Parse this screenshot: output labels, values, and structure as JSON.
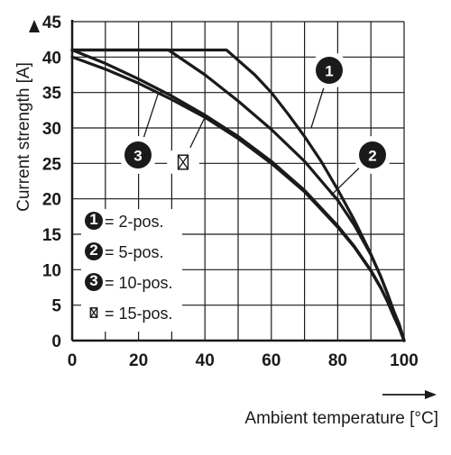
{
  "chart_data": {
    "type": "line",
    "xlabel": "Ambient temperature [°C]",
    "ylabel": "Current strength [A]",
    "xlim": [
      0,
      100
    ],
    "ylim": [
      0,
      45
    ],
    "x_ticks": [
      0,
      20,
      40,
      60,
      80,
      100
    ],
    "y_ticks": [
      0,
      5,
      10,
      15,
      20,
      25,
      30,
      35,
      40,
      45
    ],
    "grid": true,
    "series": [
      {
        "name": "2-pos.",
        "marker": "1",
        "x": [
          0,
          20,
          46.5,
          55,
          60,
          65,
          70,
          75,
          80,
          85,
          90,
          93,
          95,
          97,
          98.5,
          100
        ],
        "y": [
          41,
          41,
          41,
          37.5,
          35,
          32,
          28.8,
          25.3,
          21.3,
          17,
          12.2,
          9,
          6.6,
          4,
          2.3,
          0
        ]
      },
      {
        "name": "5-pos.",
        "marker": "2",
        "x": [
          0,
          20,
          29,
          40,
          50,
          60,
          70,
          80,
          85,
          90,
          93,
          95,
          97,
          98.5,
          100
        ],
        "y": [
          41,
          41,
          41,
          37.5,
          33.8,
          29.8,
          25.3,
          19.8,
          16.3,
          12.1,
          9,
          6.6,
          4,
          2.3,
          0
        ]
      },
      {
        "name": "10-pos.",
        "marker": "3",
        "x": [
          0,
          10,
          20,
          30,
          40,
          50,
          60,
          70,
          80,
          85,
          90,
          93,
          95,
          97,
          98.5,
          100
        ],
        "y": [
          40,
          38.3,
          36.3,
          34,
          31.5,
          28.5,
          25,
          21,
          16,
          13.2,
          9.8,
          7.4,
          5.5,
          3.3,
          1.8,
          0
        ]
      },
      {
        "name": "15-pos.",
        "marker": "x-box",
        "x": [
          0,
          10,
          20,
          30,
          40,
          50,
          60,
          70,
          80,
          85,
          90,
          93,
          95,
          97,
          98.5,
          100
        ],
        "y": [
          41,
          39.1,
          36.9,
          34.5,
          31.8,
          28.8,
          25.3,
          21.2,
          16.2,
          13.3,
          9.9,
          7.5,
          5.5,
          3.3,
          1.8,
          0
        ]
      }
    ],
    "legend": {
      "placement": "bottom-left",
      "items": [
        {
          "marker": "1",
          "label": "= 2-pos."
        },
        {
          "marker": "2",
          "label": "= 5-pos."
        },
        {
          "marker": "3",
          "label": "= 10-pos."
        },
        {
          "marker": "x-box",
          "label": "= 15-pos."
        }
      ]
    },
    "annotations": [
      {
        "series": "2-pos.",
        "text": "1",
        "at": [
          72,
          30
        ]
      },
      {
        "series": "5-pos.",
        "text": "2",
        "at": [
          78,
          20.5
        ]
      },
      {
        "series": "10-pos.",
        "text": "3",
        "at": [
          26,
          35
        ]
      },
      {
        "series": "15-pos.",
        "text": "x-box",
        "at": [
          40,
          31.5
        ]
      }
    ]
  },
  "colors": {
    "line": "#1a1a1a",
    "grid": "#1a1a1a",
    "background": "#ffffff"
  }
}
